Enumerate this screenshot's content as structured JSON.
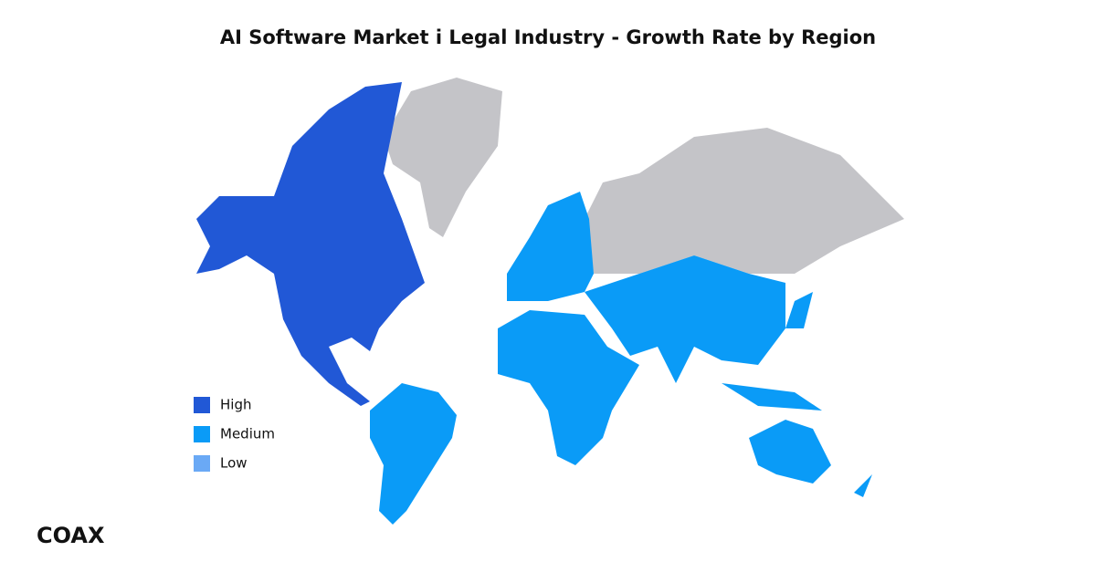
{
  "header": {
    "title": "AI Software Market i Legal Industry - Growth Rate by Region"
  },
  "legend": {
    "items": [
      {
        "label": "High",
        "color": "#2158d6"
      },
      {
        "label": "Medium",
        "color": "#0a9bf7"
      },
      {
        "label": "Low",
        "color": "#6aa9f5"
      }
    ]
  },
  "footer": {
    "logo": "COAX"
  }
}
